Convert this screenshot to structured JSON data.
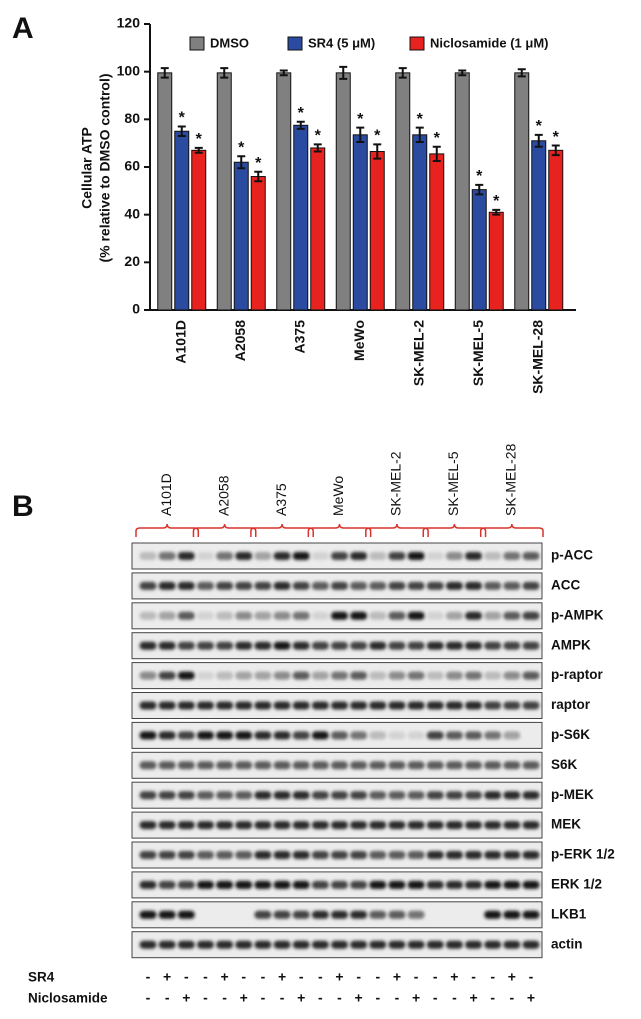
{
  "panel_labels": [
    "A",
    "B"
  ],
  "chart_data": {
    "type": "bar",
    "ylabel": [
      "Cellular ATP",
      "(% relative to DMSO control)"
    ],
    "categories": [
      "A101D",
      "A2058",
      "A375",
      "MeWo",
      "SK-MEL-2",
      "SK-MEL-5",
      "SK-MEL-28"
    ],
    "series": [
      {
        "name": "DMSO",
        "color": "#808080",
        "values": [
          99.5,
          99.5,
          99.5,
          99.5,
          99.5,
          99.5,
          99.5
        ],
        "errors": [
          2,
          2,
          1,
          2.5,
          2,
          1,
          1.5
        ]
      },
      {
        "name": "SR4 (5 μM)",
        "color": "#2b4ba0",
        "values": [
          75,
          62,
          77.5,
          73.5,
          73.5,
          50.5,
          71
        ],
        "errors": [
          2,
          2.5,
          1.5,
          3,
          3,
          2,
          2.5
        ],
        "annotation": "*"
      },
      {
        "name": "Niclosamide (1 μM)",
        "color": "#e8221e",
        "values": [
          67,
          56,
          68,
          66.5,
          65.5,
          41,
          67
        ],
        "errors": [
          1,
          2,
          1.5,
          3,
          3,
          1,
          2
        ],
        "annotation": "*"
      }
    ],
    "ylim": [
      0,
      120
    ],
    "yticks": [
      0,
      20,
      40,
      60,
      80,
      100,
      120
    ]
  },
  "blot": {
    "cell_lines": [
      "A101D",
      "A2058",
      "A375",
      "MeWo",
      "SK-MEL-2",
      "SK-MEL-5",
      "SK-MEL-28"
    ],
    "proteins": [
      "p-ACC",
      "ACC",
      "p-AMPK",
      "AMPK",
      "p-raptor",
      "raptor",
      "p-S6K",
      "S6K",
      "p-MEK",
      "MEK",
      "p-ERK 1/2",
      "ERK 1/2",
      "LKB1",
      "actin"
    ],
    "treatments": [
      {
        "label": "SR4",
        "signs": [
          "-",
          "+",
          "-",
          "-",
          "+",
          "-",
          "-",
          "+",
          "-",
          "-",
          "+",
          "-",
          "-",
          "+",
          "-",
          "-",
          "+",
          "-",
          "-",
          "+",
          "-"
        ]
      },
      {
        "label": "Niclosamide",
        "signs": [
          "-",
          "-",
          "+",
          "-",
          "-",
          "+",
          "-",
          "-",
          "+",
          "-",
          "-",
          "+",
          "-",
          "-",
          "+",
          "-",
          "-",
          "+",
          "-",
          "-",
          "+"
        ]
      }
    ]
  }
}
